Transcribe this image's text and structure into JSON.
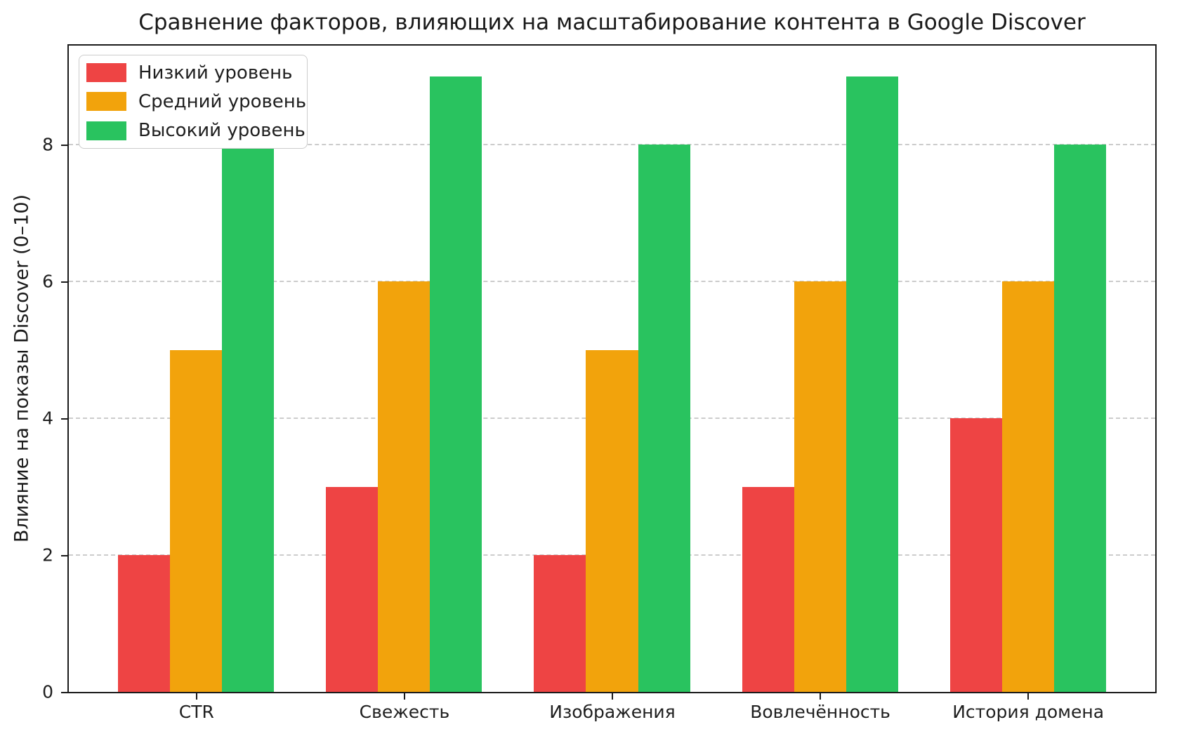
{
  "chart_data": {
    "type": "bar",
    "title": "Сравнение факторов, влияющих на масштабирование контента в Google Discover",
    "categories": [
      "CTR",
      "Свежесть",
      "Изображения",
      "Вовлечённость",
      "История домена"
    ],
    "series": [
      {
        "name": "Низкий уровень",
        "color": "#ee4444",
        "values": [
          2,
          3,
          2,
          3,
          4
        ]
      },
      {
        "name": "Средний уровень",
        "color": "#f2a30c",
        "values": [
          5,
          6,
          5,
          6,
          6
        ]
      },
      {
        "name": "Высокий уровень",
        "color": "#29c35f",
        "values": [
          8,
          9,
          8,
          9,
          8
        ]
      }
    ],
    "xlabel": "",
    "ylabel": "Влияние на показы Discover (0–10)",
    "yticks": [
      0,
      2,
      4,
      6,
      8
    ],
    "ylim": [
      0,
      9.45
    ],
    "xlim": [
      -0.6125,
      4.6125
    ],
    "bar_width": 0.25,
    "grid": "horizontal dashed",
    "legend_position": "upper-left"
  },
  "colors": {
    "background": "#ffffff",
    "grid": "#cccccc",
    "spine": "#1a1a1a",
    "text": "#1f1f1f",
    "legend_border": "#cccccc"
  }
}
